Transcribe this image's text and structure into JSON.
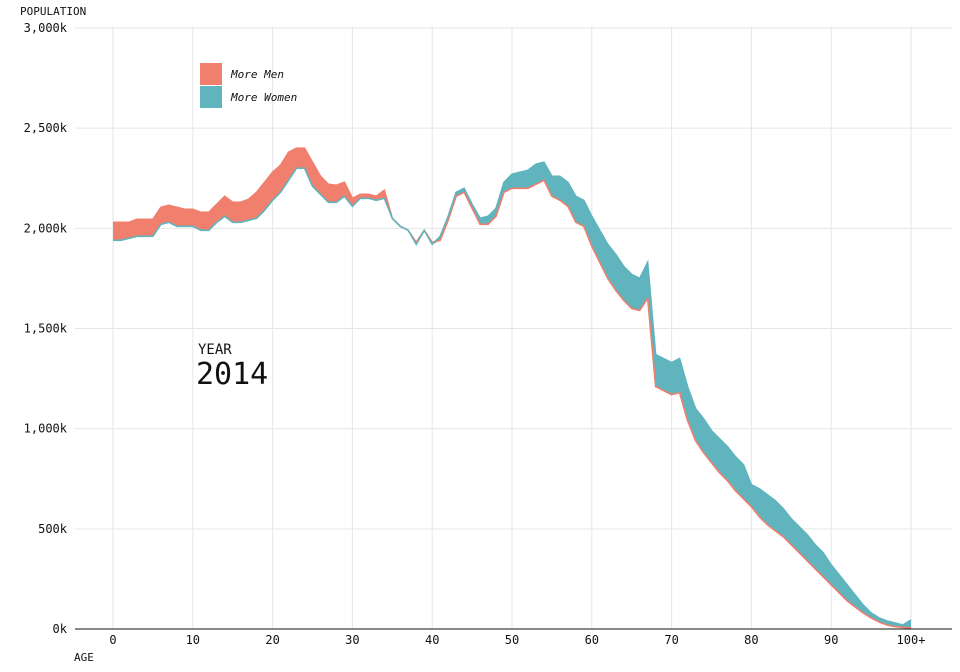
{
  "colors": {
    "more_men": "#f07f6e",
    "more_women": "#5fb4bd",
    "grid": "#e6e6e6",
    "axis": "#111111"
  },
  "chart_data": {
    "type": "area",
    "title": "",
    "xlabel": "AGE",
    "ylabel": "POPULATION",
    "xlim": [
      -5,
      105
    ],
    "ylim": [
      0,
      3000000
    ],
    "grid": true,
    "x_ticks": [
      {
        "value": 0,
        "label": "0"
      },
      {
        "value": 10,
        "label": "10"
      },
      {
        "value": 20,
        "label": "20"
      },
      {
        "value": 30,
        "label": "30"
      },
      {
        "value": 40,
        "label": "40"
      },
      {
        "value": 50,
        "label": "50"
      },
      {
        "value": 60,
        "label": "60"
      },
      {
        "value": 70,
        "label": "70"
      },
      {
        "value": 80,
        "label": "80"
      },
      {
        "value": 90,
        "label": "90"
      },
      {
        "value": 100,
        "label": "100+"
      }
    ],
    "y_ticks": [
      {
        "value": 0,
        "label": "0k"
      },
      {
        "value": 500000,
        "label": "500k"
      },
      {
        "value": 1000000,
        "label": "1,000k"
      },
      {
        "value": 1500000,
        "label": "1,500k"
      },
      {
        "value": 2000000,
        "label": "2,000k"
      },
      {
        "value": 2500000,
        "label": "2,500k"
      },
      {
        "value": 3000000,
        "label": "3,000k"
      }
    ],
    "legend": {
      "placement": "top-left",
      "items": [
        {
          "label": "More Men",
          "color": "#f07f6e"
        },
        {
          "label": "More Women",
          "color": "#5fb4bd"
        }
      ]
    },
    "annotation": {
      "label": "YEAR",
      "value": "2014"
    },
    "x": [
      0,
      1,
      2,
      3,
      4,
      5,
      6,
      7,
      8,
      9,
      10,
      11,
      12,
      13,
      14,
      15,
      16,
      17,
      18,
      19,
      20,
      21,
      22,
      23,
      24,
      25,
      26,
      27,
      28,
      29,
      30,
      31,
      32,
      33,
      34,
      35,
      36,
      37,
      38,
      39,
      40,
      41,
      42,
      43,
      44,
      45,
      46,
      47,
      48,
      49,
      50,
      51,
      52,
      53,
      54,
      55,
      56,
      57,
      58,
      59,
      60,
      61,
      62,
      63,
      64,
      65,
      66,
      67,
      68,
      69,
      70,
      71,
      72,
      73,
      74,
      75,
      76,
      77,
      78,
      79,
      80,
      81,
      82,
      83,
      84,
      85,
      86,
      87,
      88,
      89,
      90,
      91,
      92,
      93,
      94,
      95,
      96,
      97,
      98,
      99,
      100
    ],
    "series": [
      {
        "name": "Men",
        "values": [
          2030000,
          2030000,
          2030000,
          2045000,
          2045000,
          2045000,
          2105000,
          2115000,
          2105000,
          2095000,
          2095000,
          2080000,
          2080000,
          2120000,
          2160000,
          2130000,
          2130000,
          2145000,
          2180000,
          2230000,
          2280000,
          2315000,
          2380000,
          2400000,
          2400000,
          2330000,
          2260000,
          2220000,
          2215000,
          2230000,
          2150000,
          2170000,
          2170000,
          2160000,
          2190000,
          2050000,
          2010000,
          1990000,
          1930000,
          1990000,
          1930000,
          1940000,
          2040000,
          2160000,
          2180000,
          2100000,
          2020000,
          2020000,
          2060000,
          2180000,
          2200000,
          2200000,
          2200000,
          2220000,
          2240000,
          2160000,
          2140000,
          2110000,
          2030000,
          2010000,
          1910000,
          1830000,
          1750000,
          1690000,
          1640000,
          1600000,
          1590000,
          1650000,
          1210000,
          1190000,
          1170000,
          1180000,
          1040000,
          940000,
          880000,
          830000,
          780000,
          740000,
          690000,
          650000,
          610000,
          560000,
          520000,
          490000,
          460000,
          420000,
          380000,
          340000,
          300000,
          260000,
          220000,
          180000,
          140000,
          110000,
          80000,
          55000,
          35000,
          20000,
          12000,
          8000,
          6000
        ]
      },
      {
        "name": "Women",
        "values": [
          1940000,
          1940000,
          1950000,
          1960000,
          1960000,
          1960000,
          2020000,
          2030000,
          2010000,
          2010000,
          2010000,
          1990000,
          1990000,
          2030000,
          2060000,
          2030000,
          2030000,
          2040000,
          2050000,
          2090000,
          2140000,
          2180000,
          2240000,
          2300000,
          2300000,
          2210000,
          2170000,
          2130000,
          2130000,
          2160000,
          2110000,
          2150000,
          2150000,
          2140000,
          2150000,
          2050000,
          2010000,
          1990000,
          1920000,
          1990000,
          1920000,
          1960000,
          2060000,
          2180000,
          2200000,
          2120000,
          2050000,
          2060000,
          2100000,
          2230000,
          2270000,
          2280000,
          2290000,
          2320000,
          2330000,
          2260000,
          2260000,
          2230000,
          2160000,
          2140000,
          2060000,
          1990000,
          1920000,
          1870000,
          1810000,
          1770000,
          1750000,
          1830000,
          1370000,
          1350000,
          1330000,
          1350000,
          1210000,
          1100000,
          1050000,
          990000,
          950000,
          910000,
          860000,
          820000,
          720000,
          700000,
          670000,
          640000,
          600000,
          550000,
          510000,
          470000,
          420000,
          380000,
          320000,
          270000,
          220000,
          170000,
          120000,
          80000,
          55000,
          40000,
          30000,
          20000,
          45000
        ]
      }
    ]
  }
}
